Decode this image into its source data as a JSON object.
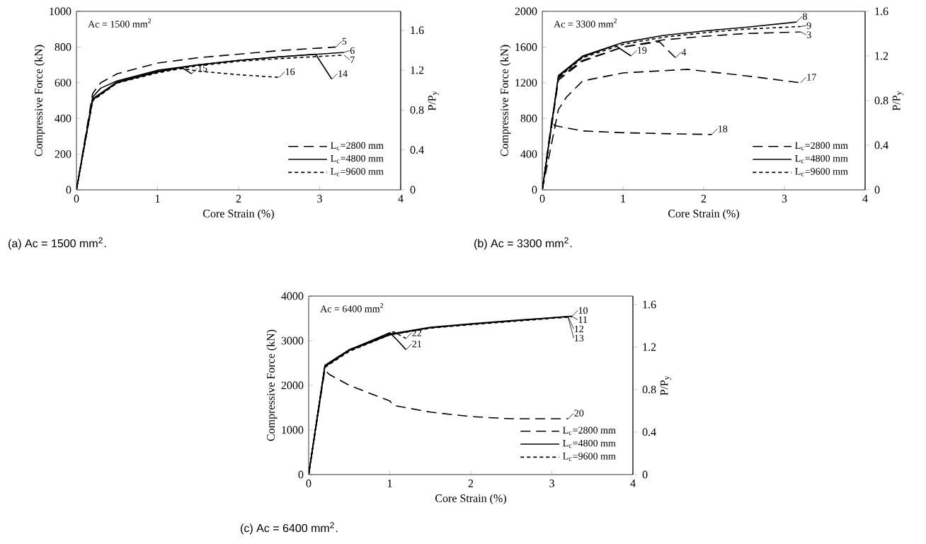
{
  "chart_data": [
    {
      "type": "line",
      "title": "(a) Ac = 1500 mm$^{2}$.",
      "xlabel": "Core Strain (%)",
      "ylabel": "Compressive Force (kN)",
      "y2label": "P/P$_{y}$",
      "xlim": [
        0,
        4
      ],
      "xticks": [
        0,
        1,
        2,
        3,
        4
      ],
      "ylim": [
        0,
        1000
      ],
      "yticks": [
        0,
        200,
        400,
        600,
        800,
        1000
      ],
      "y2lim": [
        0,
        1.79
      ],
      "y2ticks": [
        0,
        0.4,
        0.8,
        1.2,
        1.6
      ],
      "legend": "bottom right",
      "grid": false,
      "annotations": [
        "Ac = 1500 mm$^{2}$",
        {
          "text": "5",
          "x": 3.2,
          "y": 800
        },
        {
          "text": "6",
          "x": 3.3,
          "y": 770
        },
        {
          "text": "7",
          "x": 3.3,
          "y": 755
        },
        {
          "text": "14",
          "x": 3.15,
          "y": 620
        },
        {
          "text": "15",
          "x": 1.42,
          "y": 650
        },
        {
          "text": "16",
          "x": 2.5,
          "y": 630
        }
      ],
      "series": [
        {
          "name": "L$_{c}$=2800 mm",
          "color": "#000000",
          "line_style": "dashed",
          "x": [
            0,
            0.2,
            0.3,
            0.5,
            1,
            1.5,
            2,
            2.5,
            3.2
          ],
          "values": [
            0,
            540,
            600,
            650,
            710,
            740,
            760,
            780,
            800
          ]
        },
        {
          "name": "L$_{c}$=4800 mm",
          "color": "#000000",
          "line_style": "solid",
          "x": [
            0,
            0.2,
            0.3,
            0.5,
            1,
            1.5,
            2,
            2.5,
            3.3
          ],
          "values": [
            0,
            520,
            570,
            610,
            670,
            700,
            725,
            745,
            770
          ]
        },
        {
          "color": "#000000",
          "line_style": "solid",
          "x": [
            0,
            0.2,
            0.5,
            1,
            1.5,
            2,
            2.5,
            2.95,
            3.15
          ],
          "values": [
            0,
            510,
            605,
            665,
            700,
            725,
            745,
            760,
            620
          ]
        },
        {
          "color": "#000000",
          "line_style": "solid",
          "x": [
            0,
            0.2,
            0.5,
            1,
            1.3,
            1.42
          ],
          "values": [
            0,
            505,
            600,
            660,
            685,
            650
          ]
        },
        {
          "name": "L$_{c}$=9600 mm",
          "color": "#000000",
          "line_style": "dotted",
          "x": [
            0,
            0.2,
            0.5,
            1,
            1.5,
            2,
            2.5,
            3.3
          ],
          "values": [
            0,
            500,
            600,
            660,
            695,
            720,
            735,
            755
          ]
        },
        {
          "color": "#000000",
          "line_style": "dotted",
          "x": [
            0,
            0.2,
            0.5,
            1,
            1.3,
            1.5,
            2,
            2.5
          ],
          "values": [
            0,
            500,
            598,
            655,
            680,
            665,
            645,
            630
          ]
        }
      ]
    },
    {
      "type": "line",
      "title": "(b) Ac = 3300 mm$^{2}$.",
      "xlabel": "Core Strain (%)",
      "ylabel": "Compressive Force (kN)",
      "y2label": "P/P$_{y}$",
      "xlim": [
        0,
        4
      ],
      "xticks": [
        0,
        1,
        2,
        3,
        4
      ],
      "ylim": [
        0,
        2000
      ],
      "yticks": [
        0,
        400,
        800,
        1200,
        1600,
        2000
      ],
      "y2lim": [
        0,
        1.6
      ],
      "y2ticks": [
        0,
        0.4,
        0.8,
        1.2,
        1.6
      ],
      "legend": "bottom right",
      "grid": false,
      "annotations": [
        "Ac = 3300 mm$^{2}$",
        {
          "text": "8",
          "x": 3.15,
          "y": 1880
        },
        {
          "text": "9",
          "x": 3.2,
          "y": 1830
        },
        {
          "text": "3",
          "x": 3.2,
          "y": 1770
        },
        {
          "text": "19",
          "x": 1.1,
          "y": 1500
        },
        {
          "text": "4",
          "x": 1.65,
          "y": 1480
        },
        {
          "text": "17",
          "x": 3.2,
          "y": 1200
        },
        {
          "text": "18",
          "x": 2.1,
          "y": 620
        }
      ],
      "series": [
        {
          "name": "L$_{c}$=2800 mm",
          "color": "#000000",
          "line_style": "dashed",
          "x": [
            0,
            0.2,
            0.5,
            1,
            1.5,
            2,
            2.5,
            3.2
          ],
          "values": [
            0,
            1250,
            1450,
            1600,
            1680,
            1720,
            1750,
            1770
          ]
        },
        {
          "color": "#000000",
          "line_style": "dashed",
          "x": [
            0,
            0.2,
            0.5,
            1,
            1.45,
            1.65
          ],
          "values": [
            0,
            1230,
            1440,
            1600,
            1660,
            1480
          ]
        },
        {
          "color": "#000000",
          "line_style": "dashed",
          "x": [
            0,
            0.2,
            0.3,
            0.5,
            1,
            1.8,
            2.5,
            3.2
          ],
          "values": [
            0,
            900,
            1040,
            1220,
            1310,
            1350,
            1280,
            1200
          ]
        },
        {
          "color": "#000000",
          "line_style": "dashed",
          "x": [
            0,
            0.12,
            0.15,
            0.5,
            1,
            1.5,
            2.1
          ],
          "values": [
            0,
            800,
            720,
            660,
            640,
            630,
            620
          ]
        },
        {
          "name": "L$_{c}$=4800 mm",
          "color": "#000000",
          "line_style": "solid",
          "x": [
            0,
            0.2,
            0.5,
            1,
            1.5,
            2,
            2.5,
            3.15
          ],
          "values": [
            0,
            1280,
            1500,
            1650,
            1730,
            1780,
            1820,
            1880
          ]
        },
        {
          "color": "#000000",
          "line_style": "solid",
          "x": [
            0,
            0.2,
            0.5,
            0.9,
            1,
            1.1
          ],
          "values": [
            0,
            1270,
            1490,
            1620,
            1560,
            1500
          ]
        },
        {
          "name": "L$_{c}$=9600 mm",
          "color": "#000000",
          "line_style": "dotted",
          "x": [
            0,
            0.2,
            0.5,
            1,
            1.5,
            2,
            2.5,
            3.2
          ],
          "values": [
            0,
            1260,
            1480,
            1630,
            1710,
            1760,
            1800,
            1830
          ]
        }
      ]
    },
    {
      "type": "line",
      "title": "(c) Ac = 6400 mm$^{2}$.",
      "xlabel": "Core Strain (%)",
      "ylabel": "Compressive Force (kN)",
      "y2label": "P/P$_{y}$",
      "xlim": [
        0,
        4
      ],
      "xticks": [
        0,
        1,
        2,
        3,
        4
      ],
      "ylim": [
        0,
        4000
      ],
      "yticks": [
        0,
        1000,
        2000,
        3000,
        4000
      ],
      "y2lim": [
        0,
        1.68
      ],
      "y2ticks": [
        0,
        0.4,
        0.8,
        1.2,
        1.6
      ],
      "legend": "bottom right",
      "grid": false,
      "annotations": [
        "Ac = 6400 mm$^{2}$",
        {
          "text": "10",
          "x": 3.25,
          "y": 3550
        },
        {
          "text": "11",
          "x": 3.25,
          "y": 3540
        },
        {
          "text": "12",
          "x": 3.2,
          "y": 3540
        },
        {
          "text": "13",
          "x": 3.2,
          "y": 3530
        },
        {
          "text": "22",
          "x": 1.2,
          "y": 3050
        },
        {
          "text": "21",
          "x": 1.2,
          "y": 2800
        },
        {
          "text": "20",
          "x": 3.2,
          "y": 1250
        }
      ],
      "series": [
        {
          "name": "L$_{c}$=2800 mm",
          "color": "#000000",
          "line_style": "dashed",
          "x": [
            0,
            0.2,
            0.25,
            0.5,
            1,
            1.05,
            1.5,
            2,
            2.5,
            3.2
          ],
          "values": [
            0,
            2350,
            2250,
            2000,
            1650,
            1550,
            1400,
            1300,
            1250,
            1250
          ]
        },
        {
          "name": "L$_{c}$=4800 mm",
          "color": "#000000",
          "line_style": "solid",
          "x": [
            0,
            0.2,
            0.5,
            1,
            1.5,
            2,
            2.5,
            3.25
          ],
          "values": [
            0,
            2450,
            2800,
            3150,
            3300,
            3380,
            3450,
            3550
          ]
        },
        {
          "color": "#000000",
          "line_style": "solid",
          "x": [
            0,
            0.2,
            0.5,
            1,
            1.5,
            2,
            2.5,
            3.2
          ],
          "values": [
            0,
            2420,
            2780,
            3130,
            3290,
            3370,
            3440,
            3540
          ]
        },
        {
          "color": "#000000",
          "line_style": "solid",
          "x": [
            0,
            0.2,
            0.5,
            1,
            1.1,
            1.2
          ],
          "values": [
            0,
            2430,
            2790,
            3180,
            3000,
            2800
          ]
        },
        {
          "name": "L$_{c}$=9600 mm",
          "color": "#000000",
          "line_style": "dotted",
          "x": [
            0,
            0.2,
            0.5,
            1,
            1.5,
            2,
            2.5,
            3.25
          ],
          "values": [
            0,
            2400,
            2770,
            3140,
            3290,
            3370,
            3440,
            3540
          ]
        },
        {
          "color": "#000000",
          "line_style": "dotted",
          "x": [
            0,
            0.2,
            0.5,
            1,
            1.5,
            2,
            2.5,
            3.2
          ],
          "values": [
            0,
            2410,
            2760,
            3130,
            3280,
            3360,
            3430,
            3530
          ]
        },
        {
          "color": "#000000",
          "line_style": "dotted",
          "x": [
            0,
            0.2,
            0.5,
            1,
            1.05,
            1.2
          ],
          "values": [
            0,
            2420,
            2780,
            3170,
            3200,
            3050
          ]
        }
      ]
    }
  ]
}
